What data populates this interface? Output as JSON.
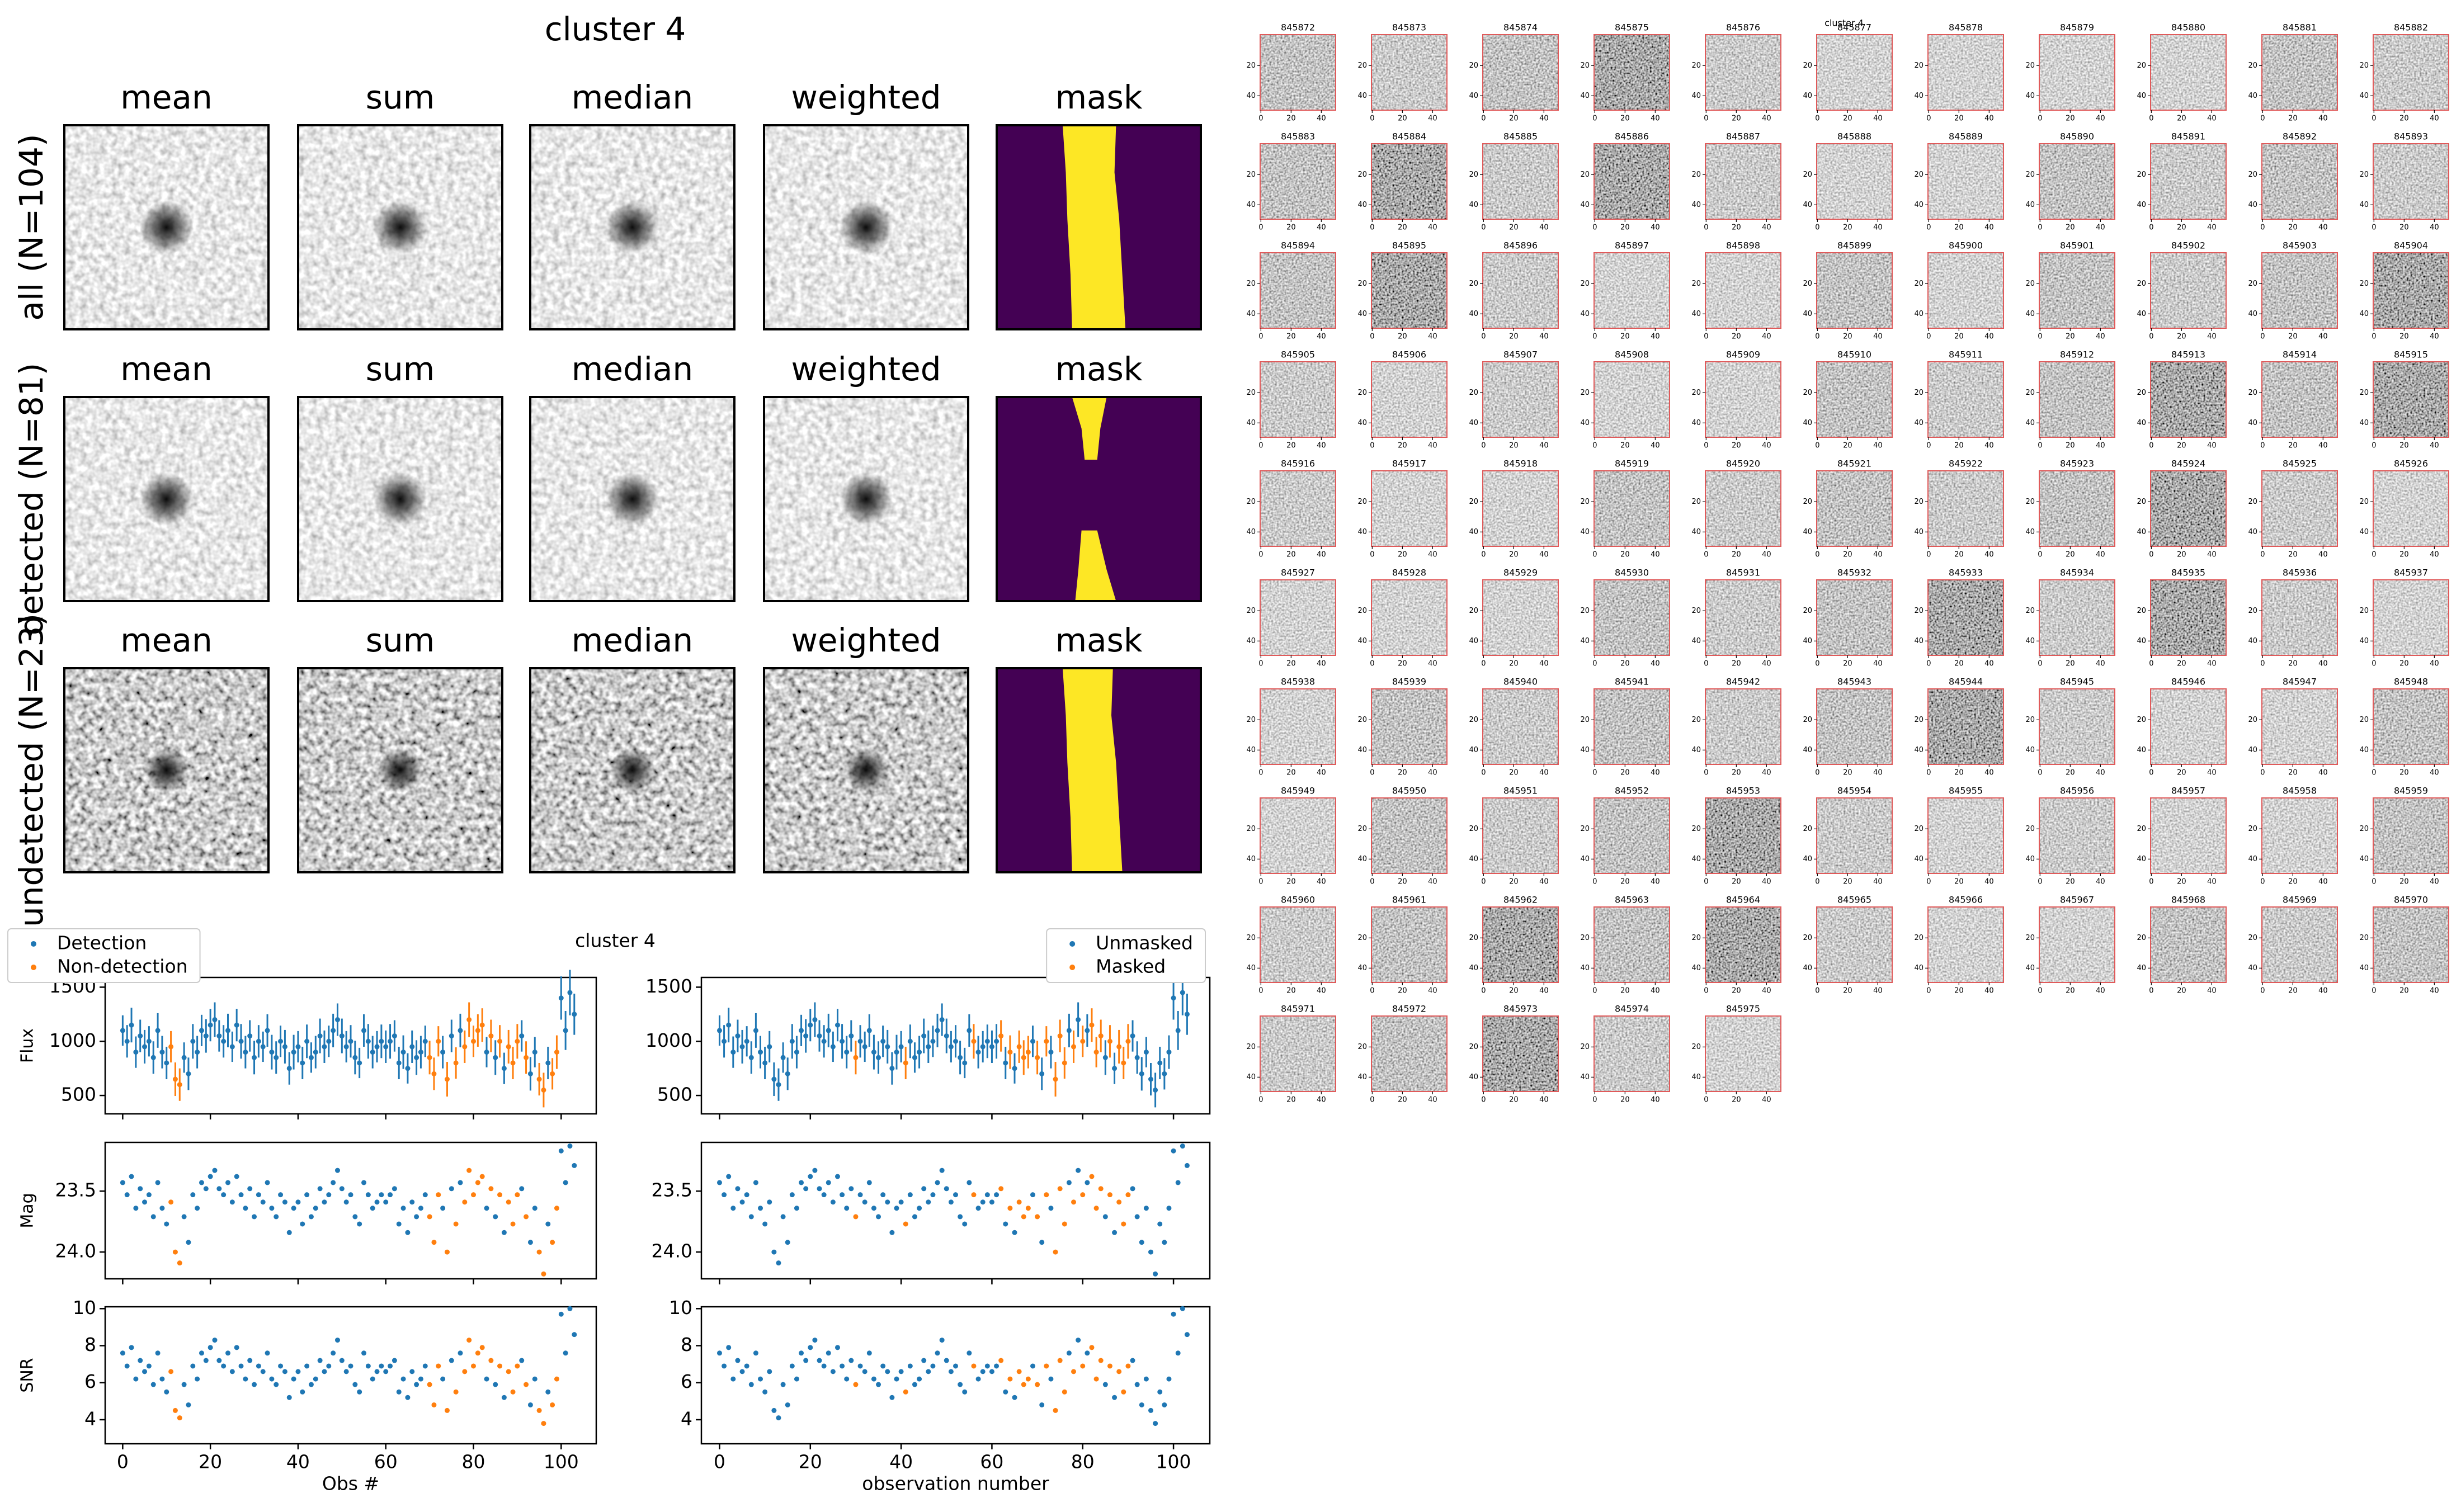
{
  "figure": {
    "title": "cluster 4",
    "columns": [
      "mean",
      "sum",
      "median",
      "weighted",
      "mask"
    ],
    "rows": [
      "all (N=104)",
      "detected (N=81)",
      "undetected (N=23)"
    ]
  },
  "chart_data": {
    "type": "scatter",
    "title": "cluster 4",
    "x": [
      0,
      1,
      2,
      3,
      4,
      5,
      6,
      7,
      8,
      9,
      10,
      11,
      12,
      13,
      14,
      15,
      16,
      17,
      18,
      19,
      20,
      21,
      22,
      23,
      24,
      25,
      26,
      27,
      28,
      29,
      30,
      31,
      32,
      33,
      34,
      35,
      36,
      37,
      38,
      39,
      40,
      41,
      42,
      43,
      44,
      45,
      46,
      47,
      48,
      49,
      50,
      51,
      52,
      53,
      54,
      55,
      56,
      57,
      58,
      59,
      60,
      61,
      62,
      63,
      64,
      65,
      66,
      67,
      68,
      69,
      70,
      71,
      72,
      73,
      74,
      75,
      76,
      77,
      78,
      79,
      80,
      81,
      82,
      83,
      84,
      85,
      86,
      87,
      88,
      89,
      90,
      91,
      92,
      93,
      94,
      95,
      96,
      97,
      98,
      99,
      100,
      101,
      102,
      103
    ],
    "xlim": [
      -4,
      108
    ],
    "xticks": [
      0,
      20,
      40,
      60,
      80,
      100
    ],
    "panels": [
      {
        "ylabel": "Flux",
        "ylim": [
          330,
          1590
        ],
        "yticks": [
          500,
          1000,
          1500
        ],
        "values": [
          1100,
          1000,
          1150,
          900,
          1050,
          950,
          1000,
          850,
          1100,
          900,
          800,
          950,
          650,
          600,
          850,
          700,
          1000,
          900,
          1100,
          1050,
          1150,
          1200,
          1050,
          1000,
          1100,
          950,
          1150,
          1000,
          900,
          1050,
          850,
          1000,
          950,
          1100,
          900,
          850,
          1000,
          950,
          750,
          900,
          950,
          800,
          1000,
          850,
          900,
          1050,
          950,
          1000,
          1100,
          1200,
          1050,
          950,
          1000,
          850,
          800,
          1100,
          1000,
          900,
          950,
          1000,
          950,
          1000,
          1050,
          800,
          900,
          750,
          950,
          850,
          900,
          1000,
          850,
          700,
          1000,
          900,
          650,
          1050,
          800,
          1100,
          950,
          1200,
          1000,
          1100,
          1150,
          900,
          1050,
          850,
          1000,
          750,
          950,
          800,
          1000,
          1050,
          850,
          700,
          900,
          650,
          550,
          800,
          700,
          900,
          1400,
          1100,
          1450,
          1250
        ],
        "errors": [
          140,
          150,
          160,
          145,
          150,
          155,
          140,
          150,
          160,
          150,
          150,
          145,
          155,
          150,
          140,
          150,
          160,
          150,
          145,
          155,
          150,
          160,
          145,
          150,
          155,
          140,
          150,
          160,
          150,
          145,
          155,
          150,
          140,
          150,
          160,
          150,
          145,
          155,
          150,
          160,
          145,
          150,
          155,
          140,
          150,
          160,
          150,
          145,
          155,
          150,
          160,
          145,
          150,
          155,
          140,
          150,
          160,
          150,
          145,
          155,
          150,
          160,
          145,
          150,
          155,
          140,
          150,
          160,
          150,
          145,
          155,
          150,
          140,
          150,
          160,
          150,
          145,
          155,
          150,
          160,
          145,
          150,
          155,
          140,
          150,
          160,
          150,
          145,
          155,
          150,
          160,
          145,
          150,
          155,
          140,
          150,
          160,
          150,
          145,
          155,
          200,
          180,
          210,
          190
        ]
      },
      {
        "ylabel": "Mag",
        "ylim": [
          24.22,
          23.1
        ],
        "yticks": [
          23.5,
          {
            "value": 24,
            "label": "24.0"
          }
        ],
        "values": [
          23.43,
          23.53,
          23.38,
          23.64,
          23.48,
          23.59,
          23.53,
          23.71,
          23.43,
          23.64,
          23.77,
          23.59,
          24.0,
          24.09,
          23.71,
          23.92,
          23.53,
          23.64,
          23.43,
          23.48,
          23.38,
          23.33,
          23.48,
          23.53,
          23.43,
          23.59,
          23.38,
          23.53,
          23.64,
          23.48,
          23.71,
          23.53,
          23.59,
          23.43,
          23.64,
          23.71,
          23.53,
          23.59,
          23.84,
          23.64,
          23.59,
          23.77,
          23.53,
          23.71,
          23.64,
          23.48,
          23.59,
          23.53,
          23.43,
          23.33,
          23.48,
          23.59,
          23.53,
          23.71,
          23.77,
          23.43,
          23.53,
          23.64,
          23.59,
          23.53,
          23.59,
          23.53,
          23.48,
          23.77,
          23.64,
          23.84,
          23.59,
          23.71,
          23.64,
          23.53,
          23.71,
          23.92,
          23.53,
          23.64,
          24.0,
          23.48,
          23.77,
          23.43,
          23.59,
          23.33,
          23.53,
          23.43,
          23.38,
          23.64,
          23.48,
          23.71,
          23.53,
          23.84,
          23.59,
          23.77,
          23.53,
          23.48,
          23.71,
          23.92,
          23.64,
          24.0,
          24.18,
          23.77,
          23.92,
          23.64,
          23.17,
          23.43,
          23.13,
          23.29
        ]
      },
      {
        "ylabel": "SNR",
        "ylim": [
          2.7,
          10.1
        ],
        "yticks": [
          4,
          6,
          8,
          10
        ],
        "values": [
          7.6,
          6.9,
          7.9,
          6.2,
          7.2,
          6.6,
          6.9,
          5.9,
          7.6,
          6.2,
          5.5,
          6.6,
          4.5,
          4.1,
          5.9,
          4.8,
          6.9,
          6.2,
          7.6,
          7.2,
          7.9,
          8.3,
          7.2,
          6.9,
          7.6,
          6.6,
          7.9,
          6.9,
          6.2,
          7.2,
          5.9,
          6.9,
          6.6,
          7.6,
          6.2,
          5.9,
          6.9,
          6.6,
          5.2,
          6.2,
          6.6,
          5.5,
          6.9,
          5.9,
          6.2,
          7.2,
          6.6,
          6.9,
          7.6,
          8.3,
          7.2,
          6.6,
          6.9,
          5.9,
          5.5,
          7.6,
          6.9,
          6.2,
          6.6,
          6.9,
          6.6,
          6.9,
          7.2,
          5.5,
          6.2,
          5.2,
          6.6,
          5.9,
          6.2,
          6.9,
          5.9,
          4.8,
          6.9,
          6.2,
          4.5,
          7.2,
          5.5,
          7.6,
          6.6,
          8.3,
          6.9,
          7.6,
          7.9,
          6.2,
          7.2,
          5.9,
          6.9,
          5.2,
          6.6,
          5.5,
          6.9,
          7.2,
          5.9,
          4.8,
          6.2,
          4.5,
          3.8,
          5.5,
          4.8,
          6.2,
          9.7,
          7.6,
          10.0,
          8.6
        ]
      }
    ],
    "columns": [
      {
        "xlabel": "Obs #",
        "legend": "upper left",
        "series": [
          {
            "name": "Detection",
            "color": "#1f77b4"
          },
          {
            "name": "Non-detection",
            "color": "#ff7f0e"
          }
        ],
        "group": [
          0,
          0,
          0,
          0,
          0,
          0,
          0,
          0,
          0,
          0,
          0,
          1,
          1,
          1,
          0,
          0,
          0,
          0,
          0,
          0,
          0,
          0,
          0,
          0,
          0,
          0,
          0,
          0,
          0,
          0,
          0,
          0,
          0,
          0,
          0,
          0,
          0,
          0,
          0,
          0,
          0,
          0,
          0,
          0,
          0,
          0,
          0,
          0,
          0,
          0,
          0,
          0,
          0,
          0,
          0,
          0,
          0,
          0,
          0,
          0,
          0,
          0,
          0,
          0,
          0,
          0,
          0,
          0,
          0,
          0,
          1,
          1,
          1,
          0,
          1,
          0,
          1,
          0,
          1,
          1,
          1,
          1,
          1,
          0,
          1,
          0,
          1,
          0,
          1,
          1,
          1,
          0,
          1,
          0,
          0,
          1,
          1,
          0,
          1,
          1,
          0,
          0,
          0,
          0
        ]
      },
      {
        "xlabel": "observation number",
        "legend": "upper right",
        "series": [
          {
            "name": "Unmasked",
            "color": "#1f77b4"
          },
          {
            "name": "Masked",
            "color": "#ff7f0e"
          }
        ],
        "group": [
          0,
          0,
          0,
          0,
          0,
          0,
          0,
          0,
          0,
          0,
          0,
          0,
          0,
          0,
          0,
          0,
          0,
          0,
          0,
          0,
          0,
          0,
          0,
          0,
          0,
          0,
          0,
          0,
          0,
          0,
          1,
          0,
          0,
          0,
          0,
          0,
          0,
          0,
          0,
          0,
          0,
          1,
          0,
          0,
          0,
          0,
          0,
          0,
          0,
          0,
          0,
          0,
          0,
          0,
          0,
          0,
          1,
          0,
          0,
          0,
          0,
          0,
          1,
          0,
          1,
          0,
          1,
          1,
          1,
          0,
          1,
          0,
          1,
          0,
          1,
          1,
          1,
          0,
          1,
          0,
          1,
          0,
          1,
          1,
          1,
          0,
          1,
          0,
          1,
          1,
          1,
          0,
          0,
          0,
          0,
          0,
          0,
          0,
          0,
          0,
          0,
          0,
          0,
          0
        ]
      }
    ]
  },
  "thumbnails": {
    "title": "cluster 4",
    "ids": [
      845872,
      845873,
      845874,
      845875,
      845876,
      845877,
      845878,
      845879,
      845880,
      845881,
      845882,
      845883,
      845884,
      845885,
      845886,
      845887,
      845888,
      845889,
      845890,
      845891,
      845892,
      845893,
      845894,
      845895,
      845896,
      845897,
      845898,
      845899,
      845900,
      845901,
      845902,
      845903,
      845904,
      845905,
      845906,
      845907,
      845908,
      845909,
      845910,
      845911,
      845912,
      845913,
      845914,
      845915,
      845916,
      845917,
      845918,
      845919,
      845920,
      845921,
      845922,
      845923,
      845924,
      845925,
      845926,
      845927,
      845928,
      845929,
      845930,
      845931,
      845932,
      845933,
      845934,
      845935,
      845936,
      845937,
      845938,
      845939,
      845940,
      845941,
      845942,
      845943,
      845944,
      845945,
      845946,
      845947,
      845948,
      845949,
      845950,
      845951,
      845952,
      845953,
      845954,
      845955,
      845956,
      845957,
      845958,
      845959,
      845960,
      845961,
      845962,
      845963,
      845964,
      845965,
      845966,
      845967,
      845968,
      845969,
      845970,
      845971,
      845972,
      845973,
      845974,
      845975
    ],
    "xlim": [
      -0.5,
      49.5
    ],
    "ylim": [
      49.5,
      -0.5
    ],
    "xticks": [
      0,
      20,
      40
    ],
    "yticks": [
      20,
      40
    ]
  }
}
